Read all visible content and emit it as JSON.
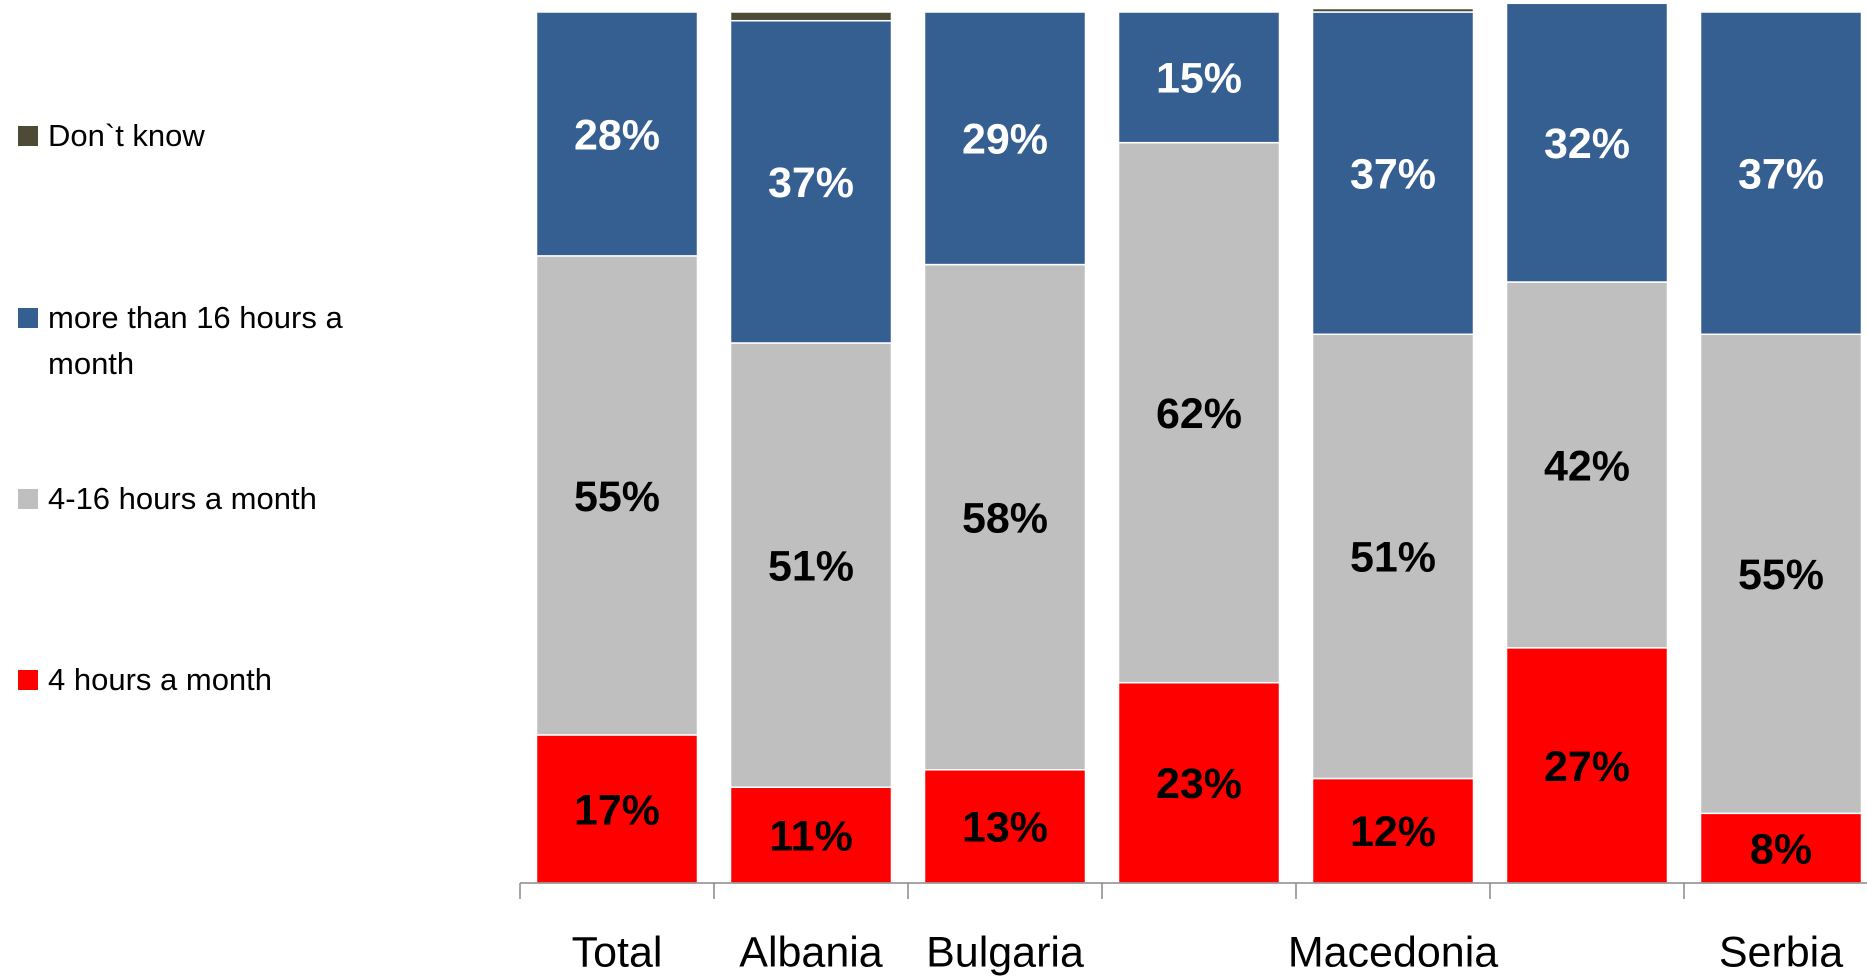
{
  "chart_data": {
    "type": "stacked_bar",
    "categories": [
      "Total",
      "Albania",
      "Bulgaria",
      null,
      "Macedonia",
      null,
      "Serbia"
    ],
    "series": [
      {
        "name": "4 hours a month",
        "color": "#ff0000",
        "values": [
          17,
          11,
          13,
          23,
          12,
          27,
          8
        ],
        "value_labels": [
          "17%",
          "11%",
          "13%",
          "23%",
          "12%",
          "27%",
          "8%"
        ]
      },
      {
        "name": "4-16 hours a month",
        "color": "#bfbfbf",
        "values": [
          55,
          51,
          58,
          62,
          51,
          42,
          55
        ],
        "value_labels": [
          "55%",
          "51%",
          "58%",
          "62%",
          "51%",
          "42%",
          "55%"
        ]
      },
      {
        "name": "more than 16 hours a month",
        "color": "#365f91",
        "values": [
          28,
          37,
          29,
          15,
          37,
          32,
          37
        ],
        "value_labels": [
          "28%",
          "37%",
          "29%",
          "15%",
          "37%",
          "32%",
          "37%"
        ]
      },
      {
        "name": "Don`t know",
        "color": "#4d4a35",
        "values": [
          0,
          1,
          0,
          0,
          0.4,
          0,
          0
        ]
      }
    ],
    "ylim": [
      0,
      100
    ],
    "legend": "left"
  }
}
